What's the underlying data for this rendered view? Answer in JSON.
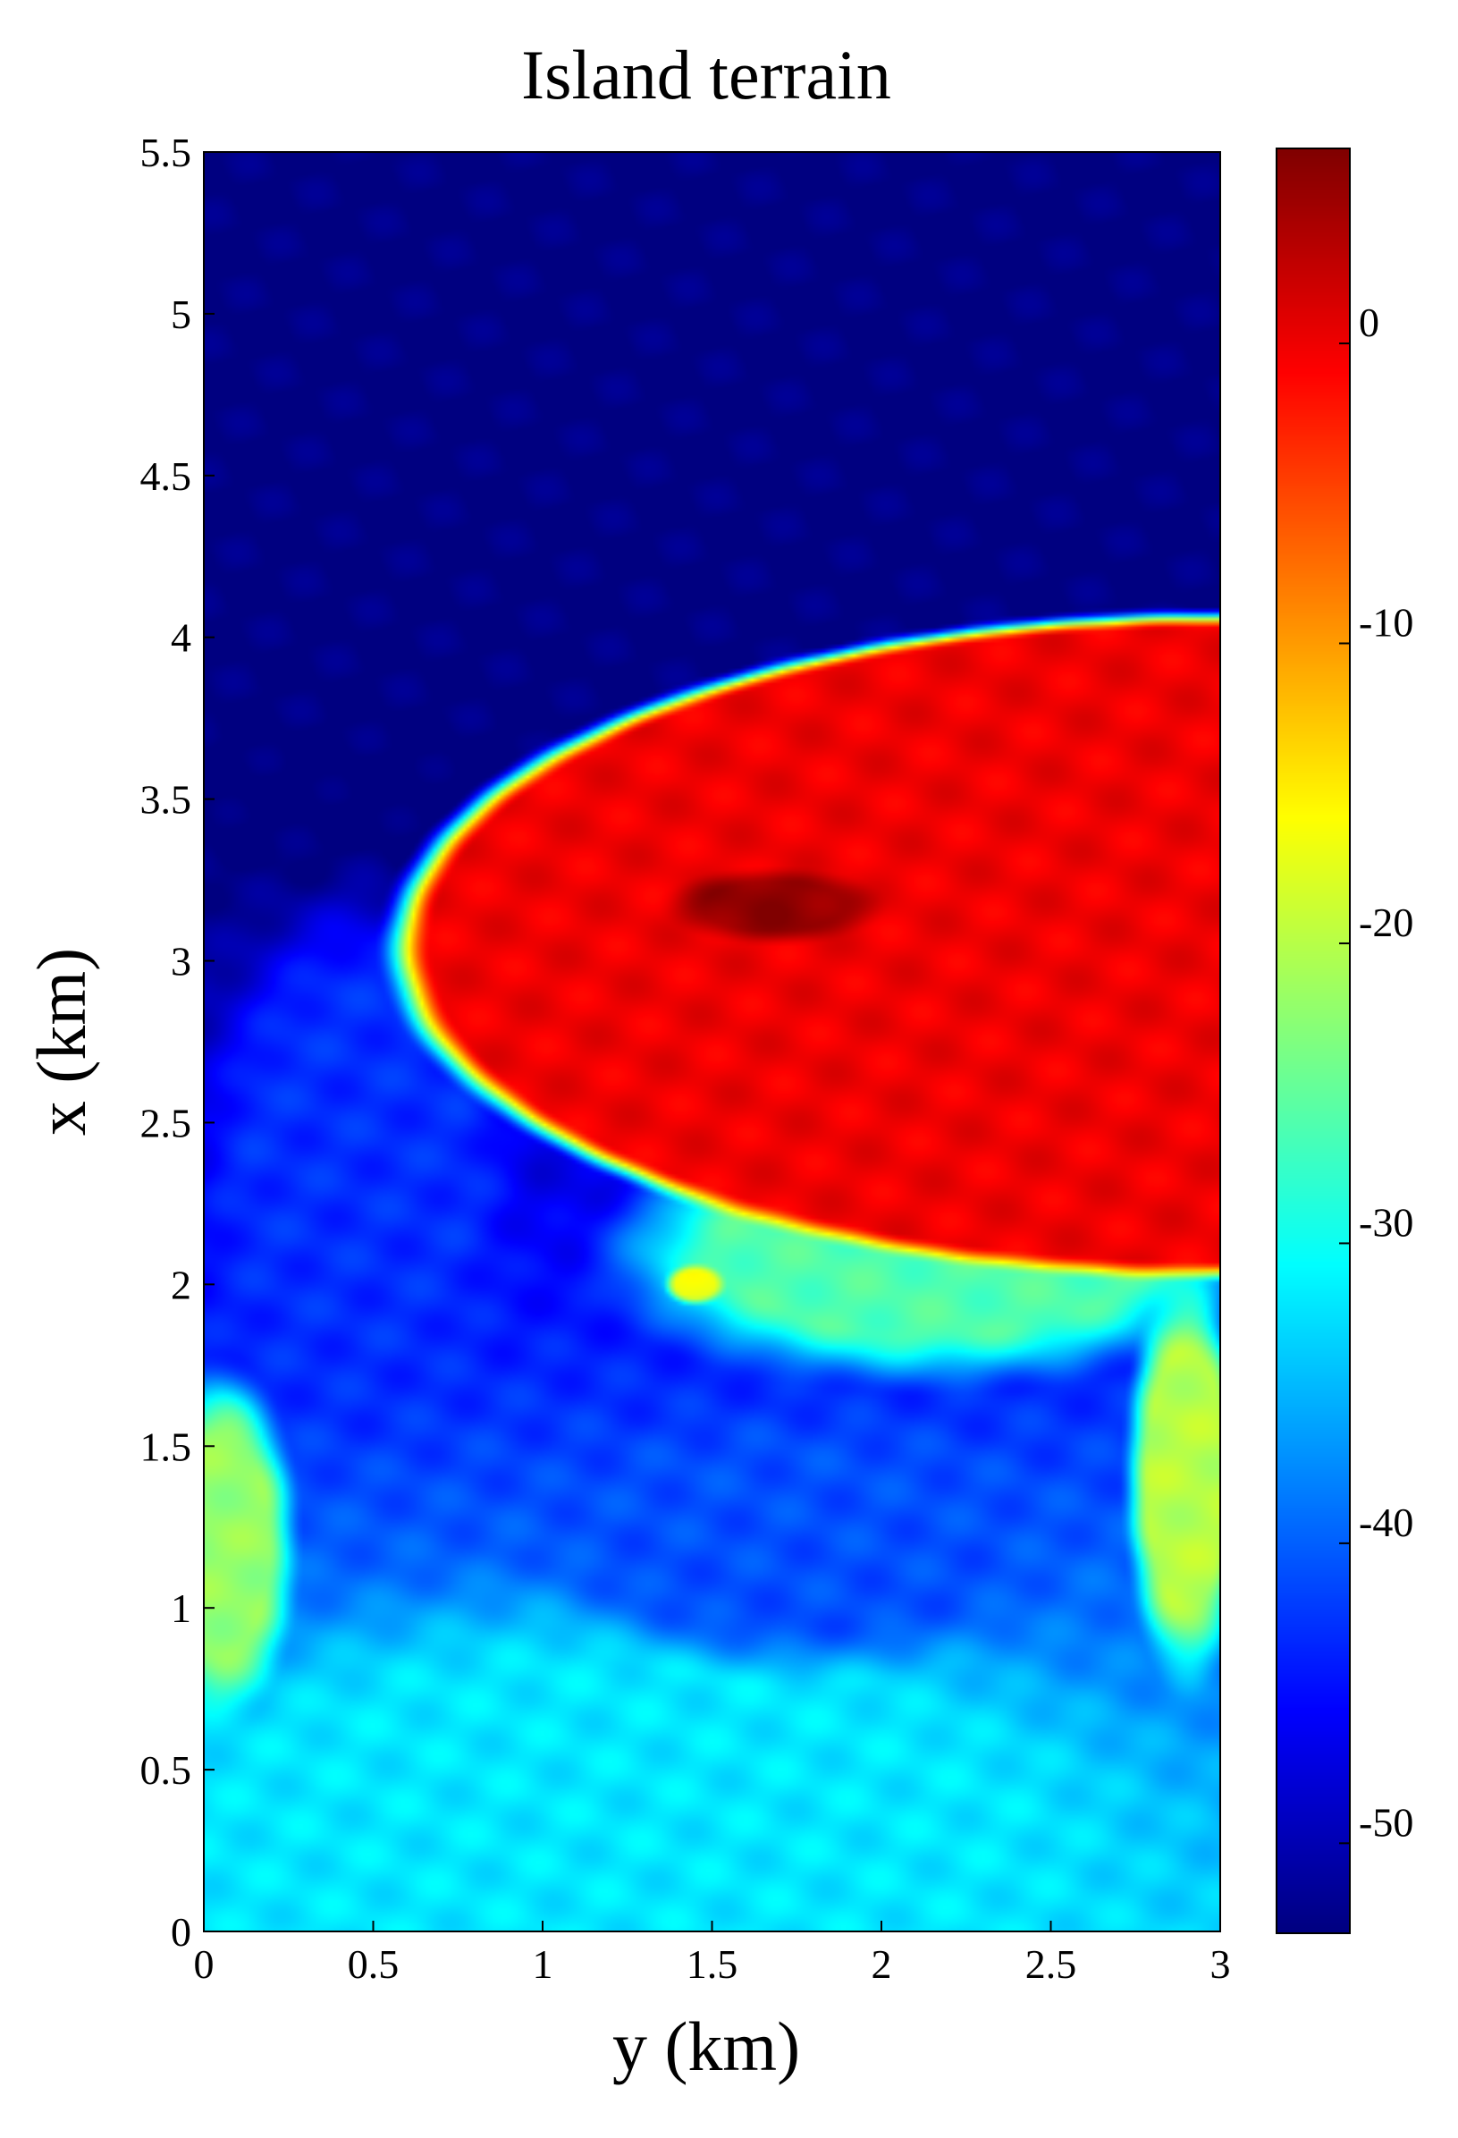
{
  "chart_data": {
    "type": "heatmap",
    "title": "Island terrain",
    "xlabel": "y (km)",
    "ylabel": "x (km)",
    "xlim": [
      0,
      3
    ],
    "ylim": [
      0,
      5.5
    ],
    "x_ticks": [
      {
        "value": 0,
        "label": "0"
      },
      {
        "value": 0.5,
        "label": "0.5"
      },
      {
        "value": 1,
        "label": "1"
      },
      {
        "value": 1.5,
        "label": "1.5"
      },
      {
        "value": 2,
        "label": "2"
      },
      {
        "value": 2.5,
        "label": "2.5"
      },
      {
        "value": 3,
        "label": "3"
      }
    ],
    "y_ticks": [
      {
        "value": 0,
        "label": "0"
      },
      {
        "value": 0.5,
        "label": "0.5"
      },
      {
        "value": 1,
        "label": "1"
      },
      {
        "value": 1.5,
        "label": "1.5"
      },
      {
        "value": 2,
        "label": "2"
      },
      {
        "value": 2.5,
        "label": "2.5"
      },
      {
        "value": 3,
        "label": "3"
      },
      {
        "value": 3.5,
        "label": "3.5"
      },
      {
        "value": 4,
        "label": "4"
      },
      {
        "value": 4.5,
        "label": "4.5"
      },
      {
        "value": 5,
        "label": "5"
      },
      {
        "value": 5.5,
        "label": "5.5"
      }
    ],
    "colorbar": {
      "colormap": "jet",
      "range": [
        -53,
        6.5
      ],
      "ticks": [
        {
          "value": 0,
          "label": "0"
        },
        {
          "value": -10,
          "label": "-10"
        },
        {
          "value": -20,
          "label": "-20"
        },
        {
          "value": -30,
          "label": "-30"
        },
        {
          "value": -40,
          "label": "-40"
        },
        {
          "value": -50,
          "label": "-50"
        }
      ]
    },
    "grid": false,
    "surface": {
      "background": -53,
      "features": [
        {
          "name": "nearshore slope",
          "type": "tilt",
          "value_at_x0": -33,
          "gradient_per_km": -6
        },
        {
          "name": "southern flat",
          "type": "blob",
          "center": [
            1.2,
            0.3
          ],
          "radius": [
            2.0,
            0.9
          ],
          "value": -32
        },
        {
          "name": "western ledge",
          "type": "blob",
          "center": [
            0.05,
            1.2
          ],
          "radius": [
            0.25,
            0.6
          ],
          "value": -22
        },
        {
          "name": "south-east channel",
          "type": "blob",
          "center": [
            2.9,
            1.4
          ],
          "radius": [
            0.2,
            0.7
          ],
          "value": -20
        },
        {
          "name": "south-west basin",
          "type": "blob",
          "center": [
            0.45,
            2.35
          ],
          "radius": [
            0.55,
            1.0
          ],
          "value": -43
        },
        {
          "name": "central depression",
          "type": "blob",
          "center": [
            1.75,
            1.2
          ],
          "radius": [
            0.9,
            0.45
          ],
          "value": -41
        },
        {
          "name": "outer shelf",
          "type": "blob",
          "center": [
            2.15,
            2.1
          ],
          "radius": [
            1.1,
            0.45
          ],
          "value": -26
        },
        {
          "name": "shoal",
          "type": "blob",
          "center": [
            1.45,
            2.0
          ],
          "radius": [
            0.1,
            0.07
          ],
          "value": -17
        },
        {
          "name": "island",
          "type": "plateau",
          "center": [
            3.0,
            3.05
          ],
          "radius": [
            2.5,
            1.05
          ],
          "value": 0
        },
        {
          "name": "summit",
          "type": "blob",
          "center": [
            1.68,
            3.17
          ],
          "radius": [
            0.35,
            0.13
          ],
          "value": 5.5
        }
      ]
    }
  }
}
